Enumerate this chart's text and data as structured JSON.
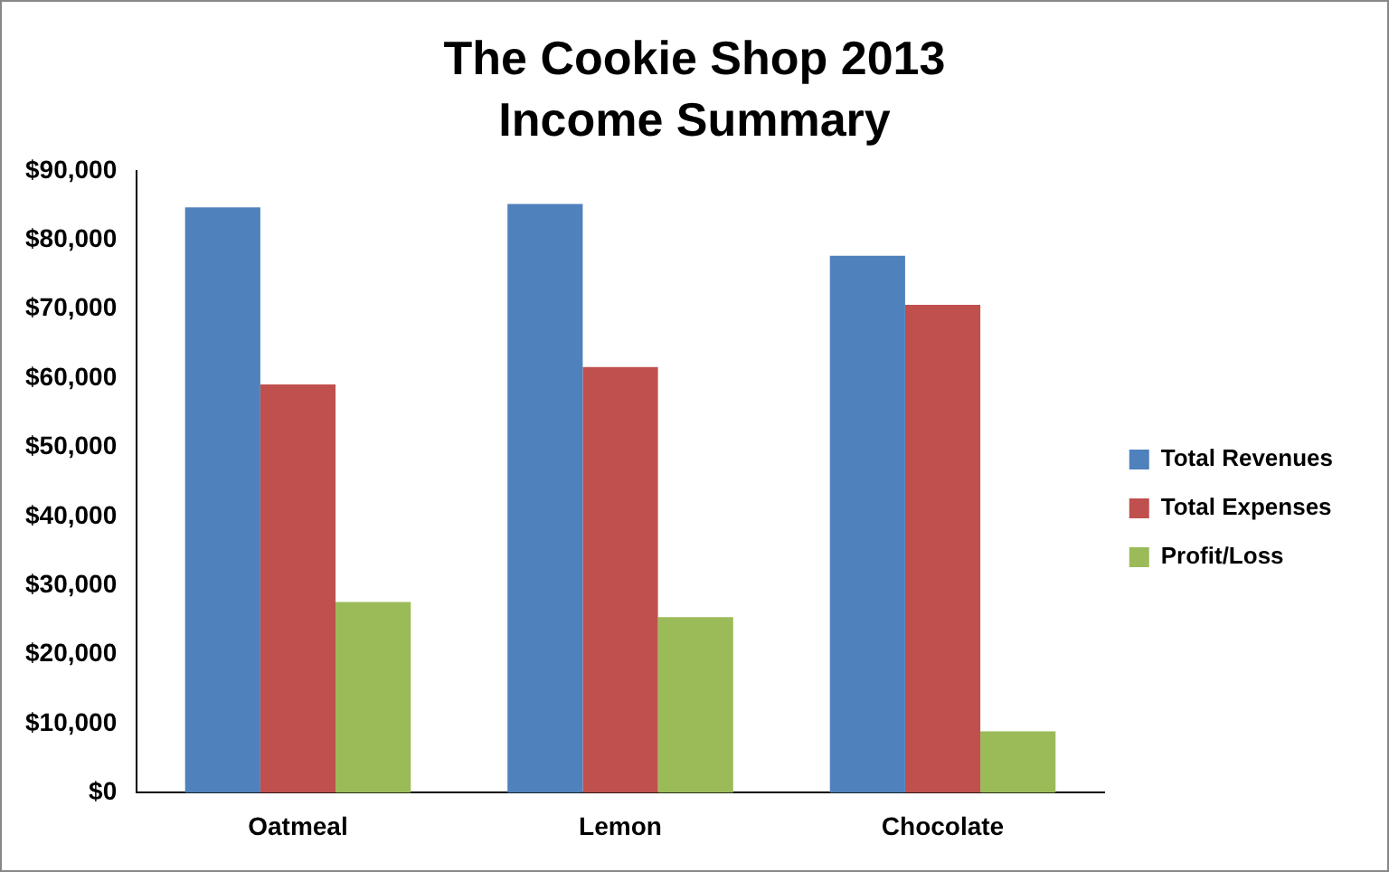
{
  "chart_data": {
    "type": "bar",
    "title": "The Cookie Shop 2013 Income Summary",
    "categories": [
      "Oatmeal",
      "Lemon",
      "Chocolate"
    ],
    "series": [
      {
        "name": "Total Revenues",
        "color": "#4f81bd",
        "values": [
          84700,
          85200,
          77700
        ]
      },
      {
        "name": "Total Expenses",
        "color": "#c0504d",
        "values": [
          59100,
          61600,
          70600
        ]
      },
      {
        "name": "Profit/Loss",
        "color": "#9bbb59",
        "values": [
          27600,
          25400,
          8900
        ]
      }
    ],
    "ylim": [
      0,
      90000
    ],
    "yticks": [
      {
        "value": 0,
        "label": "$0"
      },
      {
        "value": 10000,
        "label": "$10,000"
      },
      {
        "value": 20000,
        "label": "$20,000"
      },
      {
        "value": 30000,
        "label": "$30,000"
      },
      {
        "value": 40000,
        "label": "$40,000"
      },
      {
        "value": 50000,
        "label": "$50,000"
      },
      {
        "value": 60000,
        "label": "$60,000"
      },
      {
        "value": 70000,
        "label": "$70,000"
      },
      {
        "value": 80000,
        "label": "$80,000"
      },
      {
        "value": 90000,
        "label": "$90,000"
      }
    ],
    "grid": false,
    "legend": "right"
  }
}
